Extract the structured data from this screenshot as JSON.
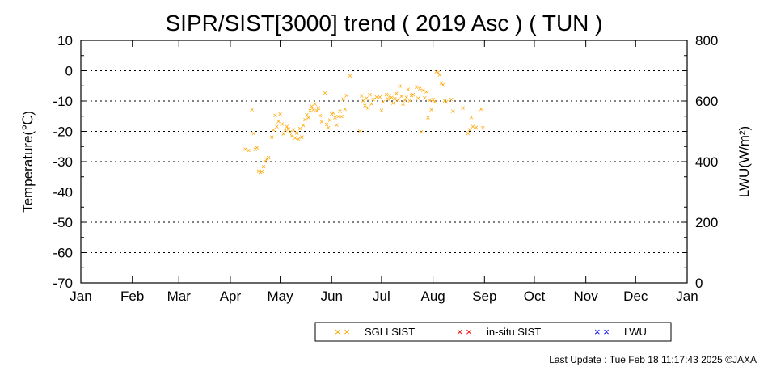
{
  "chart_data": {
    "type": "scatter",
    "title": "SIPR/SIST[3000] trend ( 2019 Asc ) ( TUN )",
    "ylabel": "Temperature(℃)",
    "ylabel2": "LWU(W/m²)",
    "ylim": [
      -70,
      10
    ],
    "ylim2": [
      0,
      800
    ],
    "y_ticks": [
      "10",
      "0",
      "-10",
      "-20",
      "-30",
      "-40",
      "-50",
      "-60",
      "-70"
    ],
    "y2_ticks": [
      "800",
      "600",
      "400",
      "200",
      "0"
    ],
    "x_ticks": [
      "Jan",
      "Feb",
      "Mar",
      "Apr",
      "May",
      "Jun",
      "Jul",
      "Aug",
      "Sep",
      "Oct",
      "Nov",
      "Dec",
      "Jan"
    ],
    "grid": "horizontal dotted",
    "legend_position": "bottom",
    "series": [
      {
        "name": "SGLI SIST",
        "color": "#ffa500",
        "marker": "x",
        "points": [
          [
            "2019-04-10",
            -25.8
          ],
          [
            "2019-04-12",
            -26.3
          ],
          [
            "2019-04-14",
            -12.8
          ],
          [
            "2019-04-15",
            -20.7
          ],
          [
            "2019-04-16",
            -25.8
          ],
          [
            "2019-04-17",
            -25.3
          ],
          [
            "2019-04-18",
            -33.0
          ],
          [
            "2019-04-19",
            -33.4
          ],
          [
            "2019-04-20",
            -33.2
          ],
          [
            "2019-04-21",
            -31.6
          ],
          [
            "2019-04-22",
            -29.8
          ],
          [
            "2019-04-23",
            -29.1
          ],
          [
            "2019-04-24",
            -28.6
          ],
          [
            "2019-04-26",
            -21.9
          ],
          [
            "2019-04-27",
            -19.4
          ],
          [
            "2019-04-28",
            -14.6
          ],
          [
            "2019-04-29",
            -18.4
          ],
          [
            "2019-04-30",
            -16.6
          ],
          [
            "2019-05-01",
            -14.3
          ],
          [
            "2019-05-02",
            -17.6
          ],
          [
            "2019-05-03",
            -20.8
          ],
          [
            "2019-05-04",
            -19.6
          ],
          [
            "2019-05-05",
            -18.4
          ],
          [
            "2019-05-06",
            -19.2
          ],
          [
            "2019-05-07",
            -20.2
          ],
          [
            "2019-05-08",
            -21.4
          ],
          [
            "2019-05-09",
            -19.5
          ],
          [
            "2019-05-10",
            -22.1
          ],
          [
            "2019-05-11",
            -20.5
          ],
          [
            "2019-05-12",
            -22.5
          ],
          [
            "2019-05-13",
            -19.1
          ],
          [
            "2019-05-14",
            -21.9
          ],
          [
            "2019-05-15",
            -18.0
          ],
          [
            "2019-05-16",
            -16.1
          ],
          [
            "2019-05-17",
            -14.5
          ],
          [
            "2019-05-18",
            -15.5
          ],
          [
            "2019-05-19",
            -13.1
          ],
          [
            "2019-05-20",
            -11.7
          ],
          [
            "2019-05-21",
            -12.8
          ],
          [
            "2019-05-22",
            -10.9
          ],
          [
            "2019-05-23",
            -13.2
          ],
          [
            "2019-05-24",
            -12.2
          ],
          [
            "2019-05-25",
            -14.8
          ],
          [
            "2019-05-26",
            -16.8
          ],
          [
            "2019-05-28",
            -7.3
          ],
          [
            "2019-05-29",
            -17.7
          ],
          [
            "2019-05-30",
            -18.8
          ],
          [
            "2019-05-31",
            -16.2
          ],
          [
            "2019-06-01",
            -14.2
          ],
          [
            "2019-06-02",
            -13.9
          ],
          [
            "2019-06-03",
            -15.5
          ],
          [
            "2019-06-04",
            -17.8
          ],
          [
            "2019-06-05",
            -15.0
          ],
          [
            "2019-06-06",
            -13.3
          ],
          [
            "2019-06-07",
            -15.1
          ],
          [
            "2019-06-08",
            -9.3
          ],
          [
            "2019-06-09",
            -12.6
          ],
          [
            "2019-06-10",
            -8.1
          ],
          [
            "2019-06-12",
            -1.6
          ],
          [
            "2019-06-18",
            -19.8
          ],
          [
            "2019-06-19",
            -8.2
          ],
          [
            "2019-06-20",
            -9.8
          ],
          [
            "2019-06-21",
            -11.4
          ],
          [
            "2019-06-22",
            -9.0
          ],
          [
            "2019-06-23",
            -12.2
          ],
          [
            "2019-06-24",
            -7.8
          ],
          [
            "2019-06-25",
            -10.9
          ],
          [
            "2019-06-26",
            -9.4
          ],
          [
            "2019-06-28",
            -8.7
          ],
          [
            "2019-06-30",
            -8.6
          ],
          [
            "2019-07-01",
            -13.0
          ],
          [
            "2019-07-02",
            -10.2
          ],
          [
            "2019-07-04",
            -7.9
          ],
          [
            "2019-07-05",
            -9.3
          ],
          [
            "2019-07-06",
            -8.2
          ],
          [
            "2019-07-07",
            -8.8
          ],
          [
            "2019-07-08",
            -10.7
          ],
          [
            "2019-07-09",
            -9.2
          ],
          [
            "2019-07-10",
            -7.5
          ],
          [
            "2019-07-11",
            -9.6
          ],
          [
            "2019-07-12",
            -5.0
          ],
          [
            "2019-07-13",
            -8.4
          ],
          [
            "2019-07-14",
            -10.9
          ],
          [
            "2019-07-15",
            -9.7
          ],
          [
            "2019-07-16",
            -8.8
          ],
          [
            "2019-07-17",
            -6.1
          ],
          [
            "2019-07-18",
            -9.9
          ],
          [
            "2019-07-19",
            -8.1
          ],
          [
            "2019-07-20",
            -7.8
          ],
          [
            "2019-07-22",
            -5.3
          ],
          [
            "2019-07-23",
            -9.1
          ],
          [
            "2019-07-24",
            -5.8
          ],
          [
            "2019-07-25",
            -20.1
          ],
          [
            "2019-07-26",
            -6.4
          ],
          [
            "2019-07-27",
            -8.9
          ],
          [
            "2019-07-28",
            -6.9
          ],
          [
            "2019-07-29",
            -15.4
          ],
          [
            "2019-07-30",
            -9.7
          ],
          [
            "2019-07-31",
            -12.8
          ],
          [
            "2019-08-01",
            -9.5
          ],
          [
            "2019-08-02",
            -10.2
          ],
          [
            "2019-08-03",
            -0.2
          ],
          [
            "2019-08-04",
            -0.5
          ],
          [
            "2019-08-05",
            -1.3
          ],
          [
            "2019-08-06",
            -4.0
          ],
          [
            "2019-08-07",
            -4.6
          ],
          [
            "2019-08-08",
            -9.9
          ],
          [
            "2019-08-09",
            -10.2
          ],
          [
            "2019-08-12",
            -9.4
          ],
          [
            "2019-08-13",
            -13.3
          ],
          [
            "2019-08-19",
            -12.2
          ],
          [
            "2019-08-22",
            -20.7
          ],
          [
            "2019-08-23",
            -19.4
          ],
          [
            "2019-08-24",
            -15.3
          ],
          [
            "2019-08-25",
            -18.4
          ],
          [
            "2019-08-27",
            -18.7
          ],
          [
            "2019-08-30",
            -12.7
          ],
          [
            "2019-08-31",
            -18.8
          ]
        ]
      },
      {
        "name": "in-situ SIST",
        "color": "#ff0000",
        "marker": "x",
        "points": []
      },
      {
        "name": "LWU",
        "color": "#0000ff",
        "marker": "x",
        "points": []
      }
    ]
  },
  "footer": {
    "last_update": "Last Update : Tue Feb 18 11:17:43 2025  ©JAXA"
  }
}
